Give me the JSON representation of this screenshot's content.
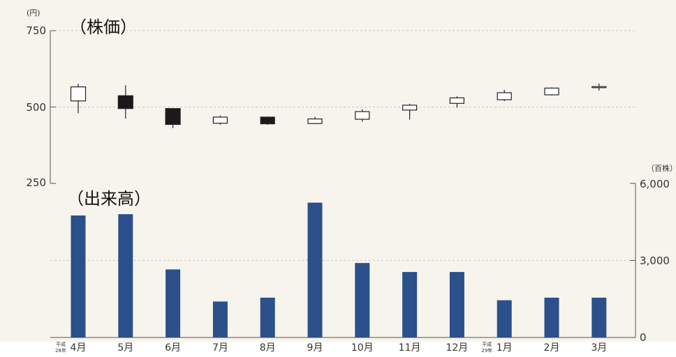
{
  "chart_data": [
    {
      "type": "candlestick",
      "title": "（株価）",
      "unit": "(円)",
      "ylim": [
        250,
        750
      ],
      "yticks": [
        "750",
        "500",
        "250"
      ],
      "categories": [
        "4月",
        "5月",
        "6月",
        "7月",
        "8月",
        "9月",
        "10月",
        "11月",
        "12月",
        "1月",
        "2月",
        "3月"
      ],
      "series": [
        {
          "open": 520,
          "close": 566,
          "high": 576,
          "low": 480,
          "up": true
        },
        {
          "open": 537,
          "close": 495,
          "high": 571,
          "low": 462,
          "up": false
        },
        {
          "open": 495,
          "close": 443,
          "high": 496,
          "low": 431,
          "up": false
        },
        {
          "open": 447,
          "close": 467,
          "high": 472,
          "low": 442,
          "up": true
        },
        {
          "open": 467,
          "close": 445,
          "high": 469,
          "low": 442,
          "up": false
        },
        {
          "open": 446,
          "close": 461,
          "high": 468,
          "low": 444,
          "up": true
        },
        {
          "open": 460,
          "close": 485,
          "high": 492,
          "low": 452,
          "up": true
        },
        {
          "open": 490,
          "close": 506,
          "high": 511,
          "low": 459,
          "up": true
        },
        {
          "open": 512,
          "close": 530,
          "high": 535,
          "low": 498,
          "up": true
        },
        {
          "open": 524,
          "close": 547,
          "high": 556,
          "low": 519,
          "up": true
        },
        {
          "open": 540,
          "close": 562,
          "high": 564,
          "low": 538,
          "up": true
        },
        {
          "open": 564,
          "close": 567,
          "high": 577,
          "low": 554,
          "up": true
        }
      ]
    },
    {
      "type": "bar",
      "title": "（出来高）",
      "unit": "（百株）",
      "ylim": [
        0,
        6000
      ],
      "yticks": [
        "6,000",
        "3,000",
        "0"
      ],
      "categories": [
        "4月",
        "5月",
        "6月",
        "7月",
        "8月",
        "9月",
        "10月",
        "11月",
        "12月",
        "1月",
        "2月",
        "3月"
      ],
      "values": [
        4750,
        4800,
        2650,
        1400,
        1550,
        5250,
        2900,
        2550,
        2550,
        1450,
        1550,
        1550
      ],
      "era_labels": {
        "0": [
          "平成",
          "28年"
        ],
        "9": [
          "平成",
          "29年"
        ]
      }
    }
  ],
  "colors": {
    "panel": "#f6f4ec",
    "bar": "#2b508b",
    "axis": "#555555",
    "grid": "#c8c8c8"
  }
}
